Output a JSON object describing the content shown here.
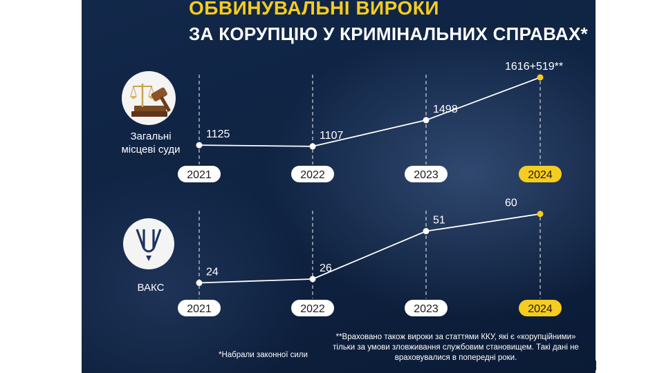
{
  "title": {
    "line1": "ОБВИНУВАЛЬНІ ВИРОКИ",
    "line2": "ЗА КОРУПЦІЮ У КРИМІНАЛЬНИХ СПРАВАХ*"
  },
  "colors": {
    "background": "#0f2342",
    "accent": "#f5cc1f",
    "line": "#ffffff"
  },
  "icons": {
    "top": "scales-gavel-icon",
    "bottom": "hacc-emblem-icon"
  },
  "chart_data": [
    {
      "type": "line",
      "series_caption": "Загальні місцеві суди",
      "categories": [
        "2021",
        "2022",
        "2023",
        "2024"
      ],
      "values": [
        1125,
        1107,
        1498,
        2135
      ],
      "data_labels": [
        "1125",
        "1107",
        "1498",
        "1616+519**"
      ],
      "highlight_index": 3,
      "ylim": [
        900,
        2300
      ],
      "grid": true
    },
    {
      "type": "line",
      "series_caption": "ВАКС",
      "categories": [
        "2021",
        "2022",
        "2023",
        "2024"
      ],
      "values": [
        24,
        26,
        51,
        60
      ],
      "data_labels": [
        "24",
        "26",
        "51",
        "60"
      ],
      "highlight_index": 3,
      "ylim": [
        13,
        70
      ],
      "grid": true
    }
  ],
  "footnotes": {
    "double_star": "**Враховано також вироки за статтями ККУ, які є «корупційними» тільки за умови зловживання службовим становищем. Такі дані не враховувалися в попередні роки.",
    "single_star": "*Набрали законної сили"
  }
}
